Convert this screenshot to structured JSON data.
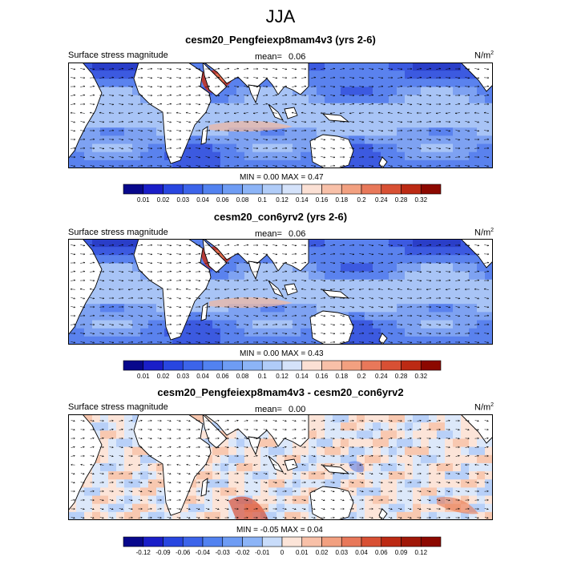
{
  "figure_title": "JJA",
  "units_text": "N/m",
  "units_exp": "2",
  "panels": [
    {
      "title": "cesm20_Pengfeiexp8mam4v3 (yrs 2-6)",
      "left_label": "Surface stress magnitude",
      "mean_label": "mean=",
      "mean_value": "0.06",
      "min_label": "MIN =",
      "min_value": "0.00",
      "max_label": "MAX =",
      "max_value": "0.47",
      "kind": "abs"
    },
    {
      "title": "cesm20_con6yrv2 (yrs 2-6)",
      "left_label": "Surface stress magnitude",
      "mean_label": "mean=",
      "mean_value": "0.06",
      "min_label": "MIN =",
      "min_value": "0.00",
      "max_label": "MAX =",
      "max_value": "0.43",
      "kind": "abs"
    },
    {
      "title": "cesm20_Pengfeiexp8mam4v3 - cesm20_con6yrv2",
      "left_label": "Surface stress magnitude",
      "mean_label": "mean=",
      "mean_value": "0.00",
      "min_label": "MIN =",
      "min_value": "-0.05",
      "max_label": "MAX =",
      "max_value": "0.04",
      "kind": "diff"
    }
  ],
  "chart_data": [
    {
      "type": "heatmap",
      "title": "cesm20_Pengfeiexp8mam4v3 (yrs 2-6)",
      "variable": "Surface stress magnitude",
      "units": "N/m2",
      "mean": 0.06,
      "min": 0.0,
      "max": 0.47,
      "colorbar_levels": [
        "0.01",
        "0.02",
        "0.03",
        "0.04",
        "0.06",
        "0.08",
        "0.1",
        "0.12",
        "0.14",
        "0.16",
        "0.18",
        "0.2",
        "0.24",
        "0.28",
        "0.32"
      ],
      "colorbar_colors": [
        "#08088c",
        "#1a1ec8",
        "#2846e0",
        "#3c64ea",
        "#5282f0",
        "#6e9cf4",
        "#8cb4f7",
        "#b0ccf8",
        "#d4e2fa",
        "#fbe0d4",
        "#f8c0a8",
        "#f2a080",
        "#e8785a",
        "#d85034",
        "#bc2a14",
        "#8c0800"
      ]
    },
    {
      "type": "heatmap",
      "title": "cesm20_con6yrv2 (yrs 2-6)",
      "variable": "Surface stress magnitude",
      "units": "N/m2",
      "mean": 0.06,
      "min": 0.0,
      "max": 0.43,
      "colorbar_levels": [
        "0.01",
        "0.02",
        "0.03",
        "0.04",
        "0.06",
        "0.08",
        "0.1",
        "0.12",
        "0.14",
        "0.16",
        "0.18",
        "0.2",
        "0.24",
        "0.28",
        "0.32"
      ],
      "colorbar_colors": [
        "#08088c",
        "#1a1ec8",
        "#2846e0",
        "#3c64ea",
        "#5282f0",
        "#6e9cf4",
        "#8cb4f7",
        "#b0ccf8",
        "#d4e2fa",
        "#fbe0d4",
        "#f8c0a8",
        "#f2a080",
        "#e8785a",
        "#d85034",
        "#bc2a14",
        "#8c0800"
      ]
    },
    {
      "type": "heatmap",
      "title": "cesm20_Pengfeiexp8mam4v3 - cesm20_con6yrv2",
      "variable": "Surface stress magnitude",
      "units": "N/m2",
      "mean": 0.0,
      "min": -0.05,
      "max": 0.04,
      "colorbar_levels": [
        "-0.12",
        "-0.09",
        "-0.06",
        "-0.04",
        "-0.03",
        "-0.02",
        "-0.01",
        "0",
        "0.01",
        "0.02",
        "0.03",
        "0.04",
        "0.06",
        "0.09",
        "0.12"
      ],
      "colorbar_colors": [
        "#08088c",
        "#1a1ec8",
        "#2846e0",
        "#3c64ea",
        "#5282f0",
        "#6e9cf4",
        "#8cb4f7",
        "#c8dcfa",
        "#fce4d8",
        "#f8c0a8",
        "#f2a080",
        "#e8785a",
        "#d85034",
        "#bc2a14",
        "#a01808",
        "#8c0800"
      ]
    }
  ]
}
